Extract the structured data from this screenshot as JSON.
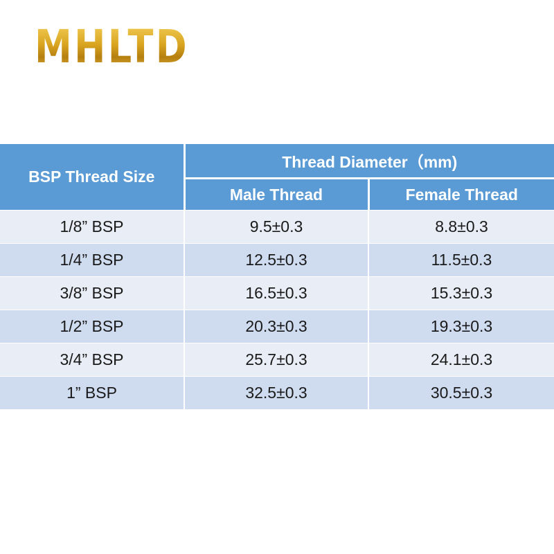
{
  "brand": {
    "logo_text": "MHLTD",
    "logo_color": "#d9a520"
  },
  "table": {
    "header_color": "#5b9bd5",
    "row_colors": [
      "#e9edf5",
      "#cfdbef"
    ],
    "col_size_header": "BSP Thread Size",
    "group_header": "Thread Diameter（mm)",
    "col_male_header": "Male Thread",
    "col_female_header": "Female Thread",
    "rows": [
      {
        "size": "1/8” BSP",
        "male": "9.5±0.3",
        "female": "8.8±0.3"
      },
      {
        "size": "1/4” BSP",
        "male": "12.5±0.3",
        "female": "11.5±0.3"
      },
      {
        "size": "3/8” BSP",
        "male": "16.5±0.3",
        "female": "15.3±0.3"
      },
      {
        "size": "1/2” BSP",
        "male": "20.3±0.3",
        "female": "19.3±0.3"
      },
      {
        "size": "3/4” BSP",
        "male": "25.7±0.3",
        "female": "24.1±0.3"
      },
      {
        "size": "1” BSP",
        "male": "32.5±0.3",
        "female": "30.5±0.3"
      }
    ]
  }
}
